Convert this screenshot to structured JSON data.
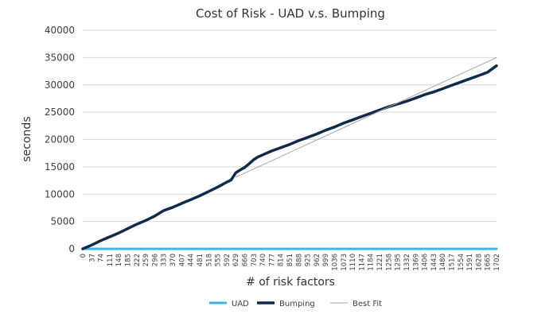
{
  "chart_data": {
    "type": "line",
    "title": "Cost of Risk - UAD v.s. Bumping",
    "xlabel": "# of risk factors",
    "ylabel": "seconds",
    "ylim": [
      0,
      40000
    ],
    "yticks": [
      0,
      5000,
      10000,
      15000,
      20000,
      25000,
      30000,
      35000,
      40000
    ],
    "xlim": [
      0,
      1702
    ],
    "xticks": [
      0,
      37,
      74,
      111,
      148,
      185,
      222,
      259,
      296,
      333,
      370,
      407,
      444,
      481,
      518,
      555,
      592,
      629,
      666,
      703,
      740,
      777,
      814,
      851,
      888,
      925,
      962,
      999,
      1036,
      1073,
      1110,
      1147,
      1184,
      1221,
      1258,
      1295,
      1332,
      1369,
      1406,
      1443,
      1480,
      1517,
      1554,
      1591,
      1628,
      1665,
      1702
    ],
    "grid": true,
    "legend_position": "bottom",
    "series": [
      {
        "name": "UAD",
        "color": "#3fb4e0",
        "x": [
          0,
          1702
        ],
        "y": [
          0,
          0
        ]
      },
      {
        "name": "Bumping",
        "color": "#0f2a4a",
        "x": [
          0,
          37,
          74,
          111,
          148,
          185,
          222,
          259,
          296,
          333,
          370,
          407,
          444,
          481,
          518,
          555,
          592,
          610,
          629,
          650,
          666,
          685,
          703,
          720,
          740,
          777,
          814,
          851,
          888,
          925,
          962,
          999,
          1036,
          1073,
          1110,
          1147,
          1184,
          1221,
          1258,
          1295,
          1332,
          1369,
          1406,
          1443,
          1480,
          1517,
          1554,
          1591,
          1628,
          1665,
          1702
        ],
        "y": [
          0,
          700,
          1500,
          2200,
          2900,
          3700,
          4500,
          5200,
          6000,
          7000,
          7600,
          8300,
          9000,
          9700,
          10500,
          11300,
          12200,
          12600,
          13900,
          14500,
          14900,
          15600,
          16300,
          16800,
          17200,
          17900,
          18500,
          19100,
          19800,
          20400,
          21000,
          21700,
          22300,
          23000,
          23600,
          24200,
          24800,
          25400,
          26000,
          26500,
          27000,
          27600,
          28200,
          28700,
          29300,
          29900,
          30500,
          31100,
          31700,
          32300,
          33500
        ]
      },
      {
        "name": "Best Fit",
        "color": "#a6a6a6",
        "x": [
          629,
          1702
        ],
        "y": [
          13100,
          35000
        ]
      }
    ]
  }
}
